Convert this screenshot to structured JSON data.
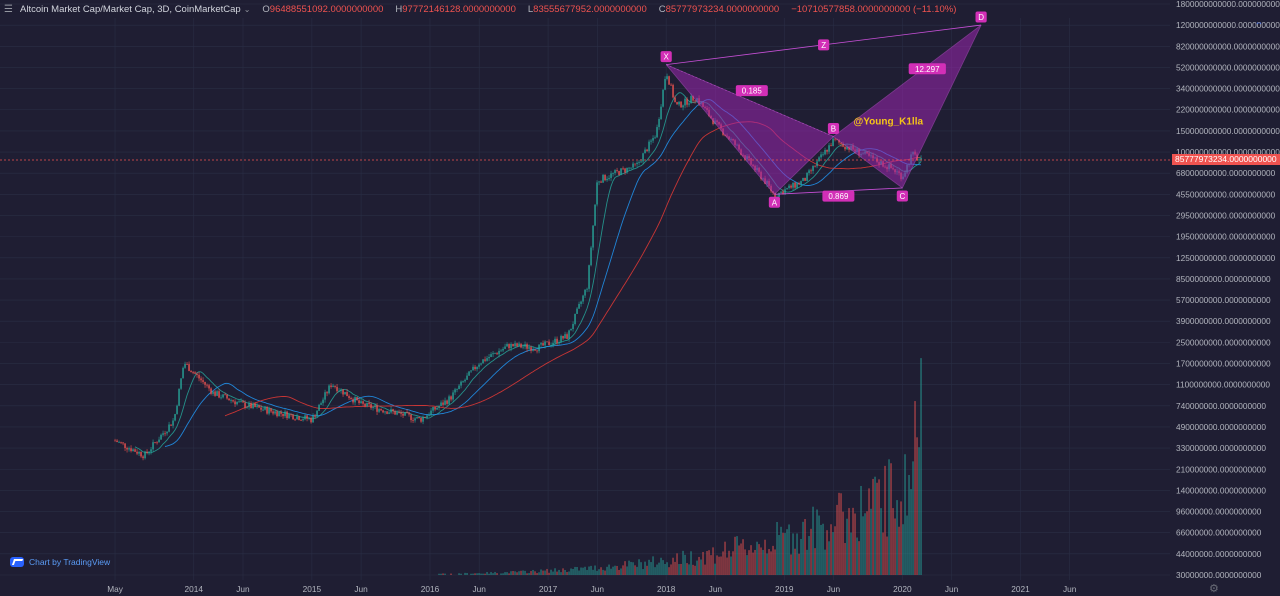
{
  "header": {
    "title": "Altcoin Market Cap/Market Cap, 3D, CoinMarketCap",
    "ohlc": [
      {
        "k": "O",
        "v": "96488551092.0000000000"
      },
      {
        "k": "H",
        "v": "97772146128.0000000000"
      },
      {
        "k": "L",
        "v": "83555677952.0000000000"
      },
      {
        "k": "C",
        "v": "85777973234.0000000000"
      },
      {
        "k": "",
        "v": "−10710577858.0000000000 (−11.10%)"
      }
    ]
  },
  "branding": {
    "logo_text": "Chart by TradingView"
  },
  "last_price_label": "85777973234.0000000000",
  "colors": {
    "background": "#1f1e33",
    "grid": "#2a2e45",
    "up": "#26a69a",
    "down": "#ef5350",
    "pattern_fill": "#9c27b0",
    "pattern_line": "#c64fd6",
    "ma_fast": "#26a69a",
    "ma_mid": "#2196f3",
    "ma_slow": "#e53935",
    "watermark": "#f5c518",
    "label_bg": "#d22fb7"
  },
  "icons": [
    "menu-icon",
    "chevron-down-icon",
    "tradingview-logo-icon",
    "settings-icon"
  ],
  "chart_data": {
    "type": "line",
    "scale": "log",
    "grid": true,
    "y_tick_labels": [
      "1800000000000.0000000000",
      "1200000000000.0000000000",
      "820000000000.0000000000",
      "520000000000.0000000000",
      "340000000000.0000000000",
      "220000000000.0000000000",
      "150000000000.0000000000",
      "100000000000.0000000000",
      "68000000000.0000000000",
      "45500000000.0000000000",
      "29500000000.0000000000",
      "19500000000.0000000000",
      "12500000000.0000000000",
      "8500000000.0000000000",
      "5700000000.0000000000",
      "3900000000.0000000000",
      "2500000000.0000000000",
      "1700000000.0000000000",
      "1100000000.0000000000",
      "740000000.0000000000",
      "490000000.0000000000",
      "330000000.0000000000",
      "210000000.0000000000",
      "140000000.0000000000",
      "96000000.0000000000",
      "66000000.0000000000",
      "44000000.0000000000",
      "30000000.0000000000"
    ],
    "x_tick_labels": [
      "May",
      "2014",
      "Jun",
      "2015",
      "Jun",
      "2016",
      "Jun",
      "2017",
      "Jun",
      "2018",
      "Jun",
      "2019",
      "Jun",
      "2020",
      "Jun",
      "2021",
      "Jun"
    ],
    "series": [
      {
        "x": [
          "2013-05",
          "2013-08",
          "2013-11",
          "2013-12",
          "2014-03",
          "2014-06",
          "2014-09",
          "2015-01",
          "2015-03",
          "2015-06",
          "2015-09",
          "2015-12",
          "2016-03",
          "2016-06",
          "2016-09",
          "2016-12",
          "2017-03",
          "2017-05",
          "2017-06",
          "2017-08",
          "2017-10",
          "2017-12",
          "2018-01",
          "2018-02",
          "2018-04",
          "2018-06",
          "2018-08",
          "2018-11",
          "2018-12",
          "2019-03",
          "2019-06",
          "2019-09",
          "2019-12",
          "2020-01",
          "2020-02",
          "2020-03"
        ],
        "values": [
          0.4,
          0.3,
          0.6,
          1.8,
          1.0,
          0.8,
          0.7,
          0.6,
          1.2,
          0.8,
          0.7,
          0.6,
          0.9,
          1.8,
          2.5,
          2.4,
          3.0,
          8.0,
          60,
          70,
          80,
          150,
          500,
          250,
          300,
          180,
          120,
          60,
          45,
          60,
          130,
          100,
          75,
          65,
          100,
          85.8
        ]
      }
    ],
    "annotations": {
      "harmonic_pattern": [
        {
          "label": "X",
          "date": "2018-01",
          "value": 560
        },
        {
          "label": "A",
          "date": "2018-12",
          "value": 46
        },
        {
          "label": "B",
          "date": "2019-06",
          "value": 140
        },
        {
          "label": "C",
          "date": "2020-01",
          "value": 52
        },
        {
          "label": "D",
          "date": "2020-09",
          "value": 1200
        }
      ],
      "ratios": [
        "0.185",
        "12.297",
        "0.869"
      ],
      "z_label": "Z",
      "watermark": "@Young_K1lla"
    },
    "last_value": 85777973234
  }
}
